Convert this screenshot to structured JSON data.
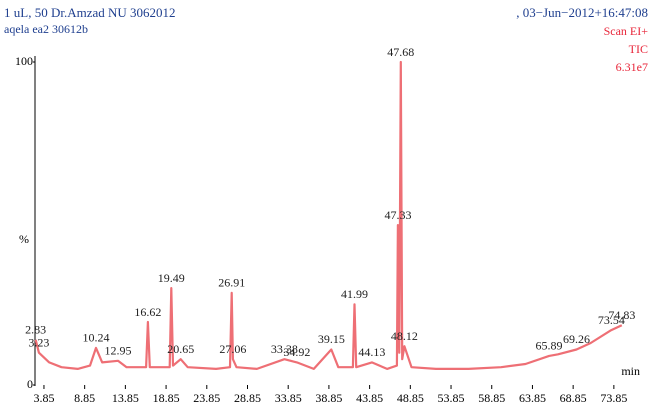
{
  "chart_data": {
    "type": "line",
    "title": "1 uL, 50 Dr.Amzad NU 3062012",
    "subtitle": "aqela ea2 30612b",
    "date": ", 03−Jun−2012+16:47:08",
    "scan": "Scan EI+",
    "mode": "TIC",
    "max_intensity": "6.31e7",
    "y_label": "%",
    "x_label": "min",
    "color": "#ee6f75",
    "x": [
      2.83,
      3.23,
      4.5,
      6,
      8,
      9.5,
      10.24,
      11,
      12.95,
      14,
      16.4,
      16.62,
      16.85,
      19.3,
      19.49,
      19.7,
      20.65,
      21.5,
      25,
      26.7,
      26.91,
      27.06,
      27.5,
      30,
      33.38,
      34.92,
      37,
      39.15,
      40,
      41.8,
      41.99,
      42.2,
      44.13,
      46,
      47.2,
      47.33,
      47.5,
      47.68,
      47.85,
      48.12,
      49,
      52,
      56,
      60,
      63,
      65.89,
      67,
      69.26,
      71,
      73.54,
      74.83
    ],
    "values": [
      14,
      10,
      7,
      5.5,
      5,
      6,
      11.5,
      7,
      7.5,
      5.5,
      5.5,
      19.5,
      5.5,
      5.5,
      30,
      6,
      8,
      5.5,
      5,
      5.5,
      28.5,
      8,
      5.5,
      5,
      8,
      7,
      5,
      11,
      5.5,
      5.5,
      25,
      5.5,
      7,
      5,
      6,
      49.5,
      10,
      100,
      8,
      12,
      5.5,
      5,
      5,
      5.5,
      6.5,
      9,
      9.5,
      11,
      13,
      17,
      18.5
    ],
    "peak_labels": [
      2.83,
      3.23,
      10.24,
      12.95,
      16.62,
      19.49,
      20.65,
      26.91,
      27.06,
      33.38,
      34.92,
      39.15,
      41.99,
      44.13,
      47.33,
      47.68,
      48.12,
      65.89,
      69.26,
      73.54,
      74.83
    ],
    "xlim": [
      2.75,
      74.85
    ],
    "xticks": [
      3.85,
      8.85,
      13.85,
      18.85,
      23.85,
      28.85,
      33.85,
      38.85,
      43.85,
      48.85,
      53.85,
      58.85,
      63.85,
      68.85,
      73.85
    ],
    "ylim": [
      0,
      100
    ],
    "yticks": [
      0,
      100
    ]
  }
}
